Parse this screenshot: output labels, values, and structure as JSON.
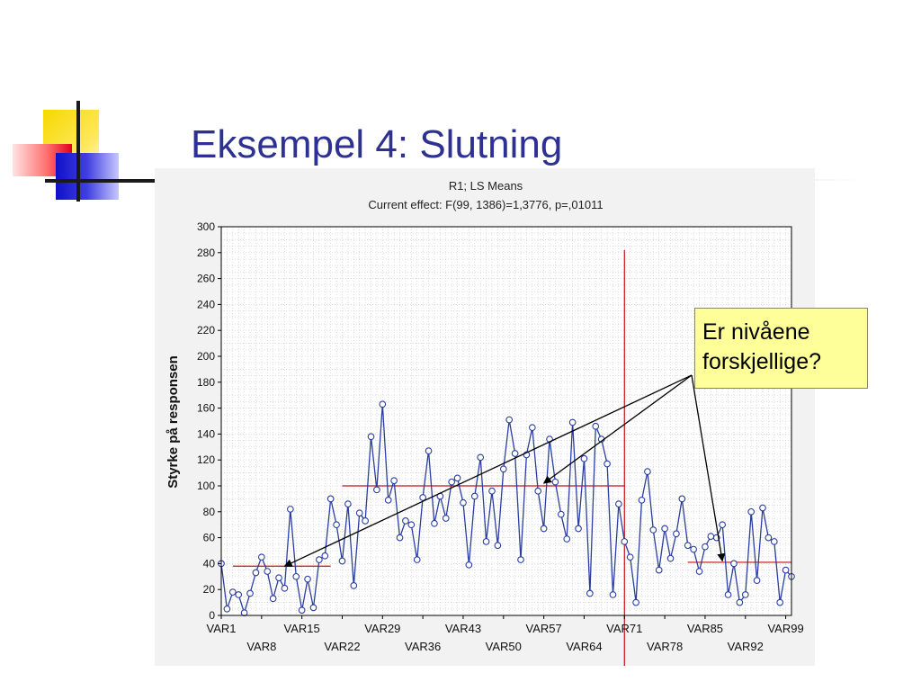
{
  "slide": {
    "title": "Eksempel 4: Slutning",
    "callout": {
      "line1": "Er nivåene",
      "line2": "forskjellige?"
    }
  },
  "chart_data": {
    "type": "line",
    "title": "R1; LS Means",
    "subtitle": "Current effect: F(99, 1386)=1,3776, p=,01011",
    "xlabel": "",
    "ylabel": "Styrke på responsen",
    "ylim": [
      0,
      300
    ],
    "yticks": [
      0,
      20,
      40,
      60,
      80,
      100,
      120,
      140,
      160,
      180,
      200,
      220,
      240,
      260,
      280,
      300
    ],
    "x_tick_labels": [
      "VAR1",
      "VAR8",
      "VAR15",
      "VAR22",
      "VAR29",
      "VAR36",
      "VAR43",
      "VAR50",
      "VAR57",
      "VAR64",
      "VAR71",
      "VAR78",
      "VAR85",
      "VAR92",
      "VAR99"
    ],
    "grid": true,
    "categories": [
      "VAR1",
      "VAR2",
      "VAR3",
      "VAR4",
      "VAR5",
      "VAR6",
      "VAR7",
      "VAR8",
      "VAR9",
      "VAR10",
      "VAR11",
      "VAR12",
      "VAR13",
      "VAR14",
      "VAR15",
      "VAR16",
      "VAR17",
      "VAR18",
      "VAR19",
      "VAR20",
      "VAR21",
      "VAR22",
      "VAR23",
      "VAR24",
      "VAR25",
      "VAR26",
      "VAR27",
      "VAR28",
      "VAR29",
      "VAR30",
      "VAR31",
      "VAR32",
      "VAR33",
      "VAR34",
      "VAR35",
      "VAR36",
      "VAR37",
      "VAR38",
      "VAR39",
      "VAR40",
      "VAR41",
      "VAR42",
      "VAR43",
      "VAR44",
      "VAR45",
      "VAR46",
      "VAR47",
      "VAR48",
      "VAR49",
      "VAR50",
      "VAR51",
      "VAR52",
      "VAR53",
      "VAR54",
      "VAR55",
      "VAR56",
      "VAR57",
      "VAR58",
      "VAR59",
      "VAR60",
      "VAR61",
      "VAR62",
      "VAR63",
      "VAR64",
      "VAR65",
      "VAR66",
      "VAR67",
      "VAR68",
      "VAR69",
      "VAR70",
      "VAR71",
      "VAR72",
      "VAR73",
      "VAR74",
      "VAR75",
      "VAR76",
      "VAR77",
      "VAR78",
      "VAR79",
      "VAR80",
      "VAR81",
      "VAR82",
      "VAR83",
      "VAR84",
      "VAR85",
      "VAR86",
      "VAR87",
      "VAR88",
      "VAR89",
      "VAR90",
      "VAR91",
      "VAR92",
      "VAR93",
      "VAR94",
      "VAR95",
      "VAR96",
      "VAR97",
      "VAR98",
      "VAR99",
      "VAR100"
    ],
    "series": [
      {
        "values": [
          40,
          5,
          18,
          16,
          2,
          17,
          33,
          45,
          34,
          13,
          29,
          21,
          82,
          30,
          4,
          28,
          6,
          43,
          46,
          90,
          70,
          42,
          86,
          23,
          79,
          73,
          138,
          97,
          163,
          89,
          104,
          60,
          73,
          70,
          43,
          91,
          127,
          71,
          92,
          75,
          103,
          106,
          87,
          39,
          92,
          122,
          57,
          96,
          54,
          113,
          151,
          125,
          43,
          124,
          145,
          96,
          67,
          136,
          103,
          78,
          59,
          149,
          67,
          121,
          17,
          146,
          136,
          117,
          16,
          86,
          57,
          45,
          10,
          89,
          111,
          66,
          35,
          67,
          44,
          63,
          90,
          54,
          51,
          34,
          53,
          61,
          60,
          70,
          16,
          40,
          10,
          16,
          80,
          27,
          83,
          60,
          57,
          10,
          35,
          30
        ]
      }
    ],
    "reference_lines": [
      {
        "from": "VAR3",
        "to": "VAR20",
        "value": 38
      },
      {
        "from": "VAR22",
        "to": "VAR71",
        "value": 100
      },
      {
        "from": "VAR82",
        "to": "VAR100",
        "value": 41
      }
    ],
    "vertical_marker": {
      "at": "VAR71"
    },
    "annotation": {
      "text_ref": "slide.callout",
      "arrow_targets": [
        [
          "VAR12",
          38
        ],
        [
          "VAR57",
          102
        ],
        [
          "VAR88",
          42
        ]
      ]
    },
    "colors": {
      "series": "#2b3ea0",
      "marker_fill": "#ffffff",
      "reference": "#c0101a",
      "grid": "#c8c8c8",
      "panel": "#f2f2f2",
      "plot_bg": "#ffffff",
      "title_text": "#2e3192"
    }
  }
}
